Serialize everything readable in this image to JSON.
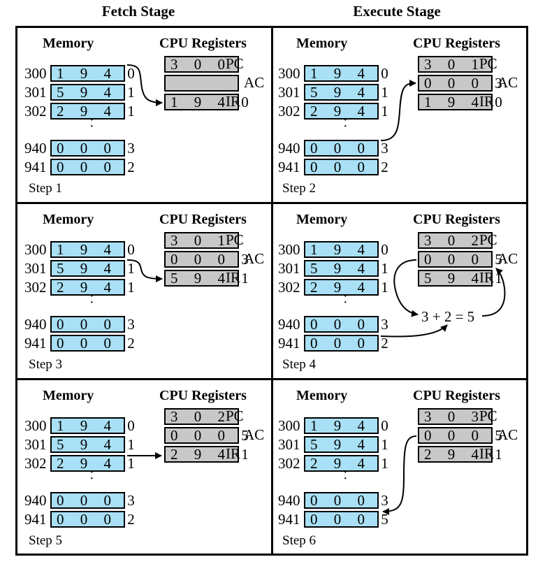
{
  "stages": {
    "fetch": "Fetch Stage",
    "execute": "Execute Stage"
  },
  "memory_header": "Memory",
  "cpu_header": "CPU Registers",
  "register_names": {
    "pc": "PC",
    "ac": "AC",
    "ir": "IR"
  },
  "panels": [
    {
      "step": "Step 1",
      "memory": {
        "300": "1 9 4 0",
        "301": "5 9 4 1",
        "302": "2 9 4 1",
        "940": "0 0 0 3",
        "941": "0 0 0 2"
      },
      "cpu": {
        "pc": "3 0 0",
        "ac": "",
        "ir": "1 9 4 0"
      }
    },
    {
      "step": "Step 2",
      "memory": {
        "300": "1 9 4 0",
        "301": "5 9 4 1",
        "302": "2 9 4 1",
        "940": "0 0 0 3",
        "941": "0 0 0 2"
      },
      "cpu": {
        "pc": "3 0 1",
        "ac": "0 0 0 3",
        "ir": "1 9 4 0"
      }
    },
    {
      "step": "Step 3",
      "memory": {
        "300": "1 9 4 0",
        "301": "5 9 4 1",
        "302": "2 9 4 1",
        "940": "0 0 0 3",
        "941": "0 0 0 2"
      },
      "cpu": {
        "pc": "3 0 1",
        "ac": "0 0 0 3",
        "ir": "5 9 4 1"
      }
    },
    {
      "step": "Step 4",
      "memory": {
        "300": "1 9 4 0",
        "301": "5 9 4 1",
        "302": "2 9 4 1",
        "940": "0 0 0 3",
        "941": "0 0 0 2"
      },
      "cpu": {
        "pc": "3 0 2",
        "ac": "0 0 0 5",
        "ir": "5 9 4 1"
      },
      "annotation": "3 + 2 = 5"
    },
    {
      "step": "Step 5",
      "memory": {
        "300": "1 9 4 0",
        "301": "5 9 4 1",
        "302": "2 9 4 1",
        "940": "0 0 0 3",
        "941": "0 0 0 2"
      },
      "cpu": {
        "pc": "3 0 2",
        "ac": "0 0 0 5",
        "ir": "2 9 4 1"
      }
    },
    {
      "step": "Step 6",
      "memory": {
        "300": "1 9 4 0",
        "301": "5 9 4 1",
        "302": "2 9 4 1",
        "940": "0 0 0 3",
        "941": "0 0 0 5"
      },
      "cpu": {
        "pc": "3 0 3",
        "ac": "0 0 0 5",
        "ir": "2 9 4 1"
      }
    }
  ],
  "addresses": [
    "300",
    "301",
    "302",
    "940",
    "941"
  ],
  "colors": {
    "memory_cell": "#a9e0f5",
    "cpu_register": "#c8c8c8",
    "border": "#000000"
  }
}
